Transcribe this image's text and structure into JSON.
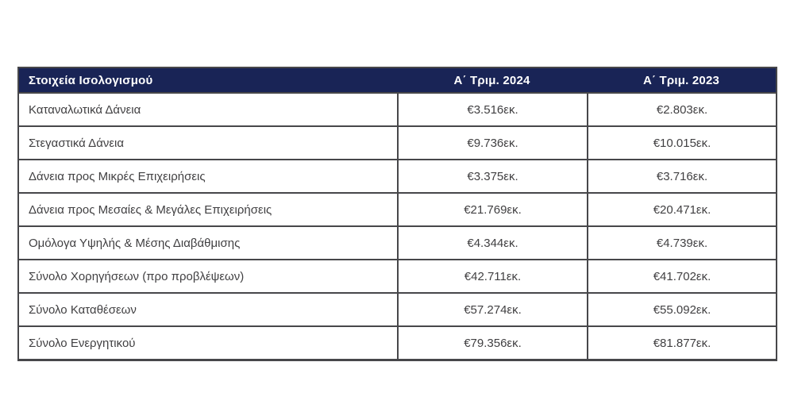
{
  "page": {
    "background": "#ffffff"
  },
  "table": {
    "columns": [
      {
        "label": "Στοιχεία Ισολογισμού"
      },
      {
        "label": "Α΄ Τριμ. 2024"
      },
      {
        "label": "Α΄ Τριμ. 2023"
      }
    ],
    "rows": [
      {
        "label": "Καταναλωτικά Δάνεια",
        "q1_2024": "€3.516εκ.",
        "q1_2023": "€2.803εκ."
      },
      {
        "label": "Στεγαστικά Δάνεια",
        "q1_2024": "€9.736εκ.",
        "q1_2023": "€10.015εκ."
      },
      {
        "label": "Δάνεια προς Μικρές Επιχειρήσεις",
        "q1_2024": "€3.375εκ.",
        "q1_2023": "€3.716εκ."
      },
      {
        "label": "Δάνεια προς Μεσαίες & Μεγάλες Επιχειρήσεις",
        "q1_2024": "€21.769εκ.",
        "q1_2023": "€20.471εκ."
      },
      {
        "label": "Ομόλογα Υψηλής & Μέσης Διαβάθμισης",
        "q1_2024": "€4.344εκ.",
        "q1_2023": "€4.739εκ."
      },
      {
        "label": "Σύνολο Χορηγήσεων (προ προβλέψεων)",
        "q1_2024": "€42.711εκ.",
        "q1_2023": "€41.702εκ."
      },
      {
        "label": "Σύνολο Καταθέσεων",
        "q1_2024": "€57.274εκ.",
        "q1_2023": "€55.092εκ."
      },
      {
        "label": "Σύνολο Ενεργητικού",
        "q1_2024": "€79.356εκ.",
        "q1_2023": "€81.877εκ."
      }
    ],
    "colors": {
      "header_bg": "#192456",
      "header_text": "#ffffff",
      "body_text": "#414042",
      "border": "#47474a"
    }
  },
  "chart_data": {
    "type": "table",
    "title": "Στοιχεία Ισολογισμού",
    "columns": [
      "Στοιχεία Ισολογισμού",
      "Α΄ Τριμ. 2024",
      "Α΄ Τριμ. 2023"
    ],
    "rows": [
      [
        "Καταναλωτικά Δάνεια",
        "€3.516εκ.",
        "€2.803εκ."
      ],
      [
        "Στεγαστικά Δάνεια",
        "€9.736εκ.",
        "€10.015εκ."
      ],
      [
        "Δάνεια προς Μικρές Επιχειρήσεις",
        "€3.375εκ.",
        "€3.716εκ."
      ],
      [
        "Δάνεια προς Μεσαίες & Μεγάλες Επιχειρήσεις",
        "€21.769εκ.",
        "€20.471εκ."
      ],
      [
        "Ομόλογα Υψηλής & Μέσης Διαβάθμισης",
        "€4.344εκ.",
        "€4.739εκ."
      ],
      [
        "Σύνολο Χορηγήσεων (προ προβλέψεων)",
        "€42.711εκ.",
        "€41.702εκ."
      ],
      [
        "Σύνολο Καταθέσεων",
        "€57.274εκ.",
        "€55.092εκ."
      ],
      [
        "Σύνολο Ενεργητικού",
        "€79.356εκ.",
        "€81.877εκ."
      ]
    ]
  }
}
